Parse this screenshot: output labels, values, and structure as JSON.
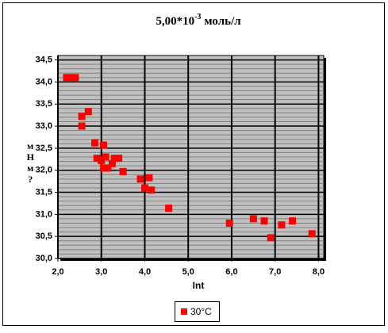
{
  "chart_data": {
    "type": "scatter",
    "title": "5,00*10",
    "title_exponent": "-3",
    "title_unit": "моль/л",
    "x_label": "Int",
    "y_label": "мНм?",
    "series": [
      {
        "name": "30°C",
        "color": "#ff0000",
        "x": [
          2.2,
          2.3,
          2.4,
          2.7,
          2.55,
          2.55,
          2.85,
          3.05,
          2.9,
          3.0,
          3.1,
          3.05,
          3.15,
          3.25,
          3.3,
          3.4,
          3.5,
          3.9,
          4.0,
          4.1,
          4.15,
          4.55,
          5.95,
          6.5,
          6.75,
          6.9,
          7.15,
          7.4,
          7.85
        ],
        "values": [
          34.1,
          34.1,
          34.1,
          33.33,
          33.22,
          33.0,
          32.62,
          32.57,
          32.27,
          32.22,
          32.3,
          32.05,
          32.05,
          32.15,
          32.27,
          32.27,
          31.97,
          31.8,
          31.6,
          31.83,
          31.55,
          31.14,
          30.8,
          30.9,
          30.85,
          30.47,
          30.76,
          30.85,
          30.56
        ]
      }
    ],
    "xlim": [
      2,
      8.12
    ],
    "ylim": [
      30,
      34.6
    ],
    "xticks": [
      {
        "value": 2,
        "label": "2,0"
      },
      {
        "value": 3,
        "label": "3,0"
      },
      {
        "value": 4,
        "label": "4,0"
      },
      {
        "value": 5,
        "label": "5,0"
      },
      {
        "value": 6,
        "label": "6,0"
      },
      {
        "value": 7,
        "label": "7,0"
      },
      {
        "value": 8,
        "label": "8,0"
      }
    ],
    "yticks": [
      {
        "value": 30,
        "label": "30,0"
      },
      {
        "value": 30.5,
        "label": "30,5"
      },
      {
        "value": 31,
        "label": "31,0"
      },
      {
        "value": 31.5,
        "label": "31,5"
      },
      {
        "value": 32,
        "label": "32,0"
      },
      {
        "value": 32.5,
        "label": "32,5"
      },
      {
        "value": 33,
        "label": "33,0"
      },
      {
        "value": 33.5,
        "label": "33,5"
      },
      {
        "value": 34,
        "label": "34,0"
      },
      {
        "value": 34.5,
        "label": "34,5"
      }
    ],
    "y_minor_step": 0.1,
    "grid": true,
    "legend": "bottom"
  }
}
